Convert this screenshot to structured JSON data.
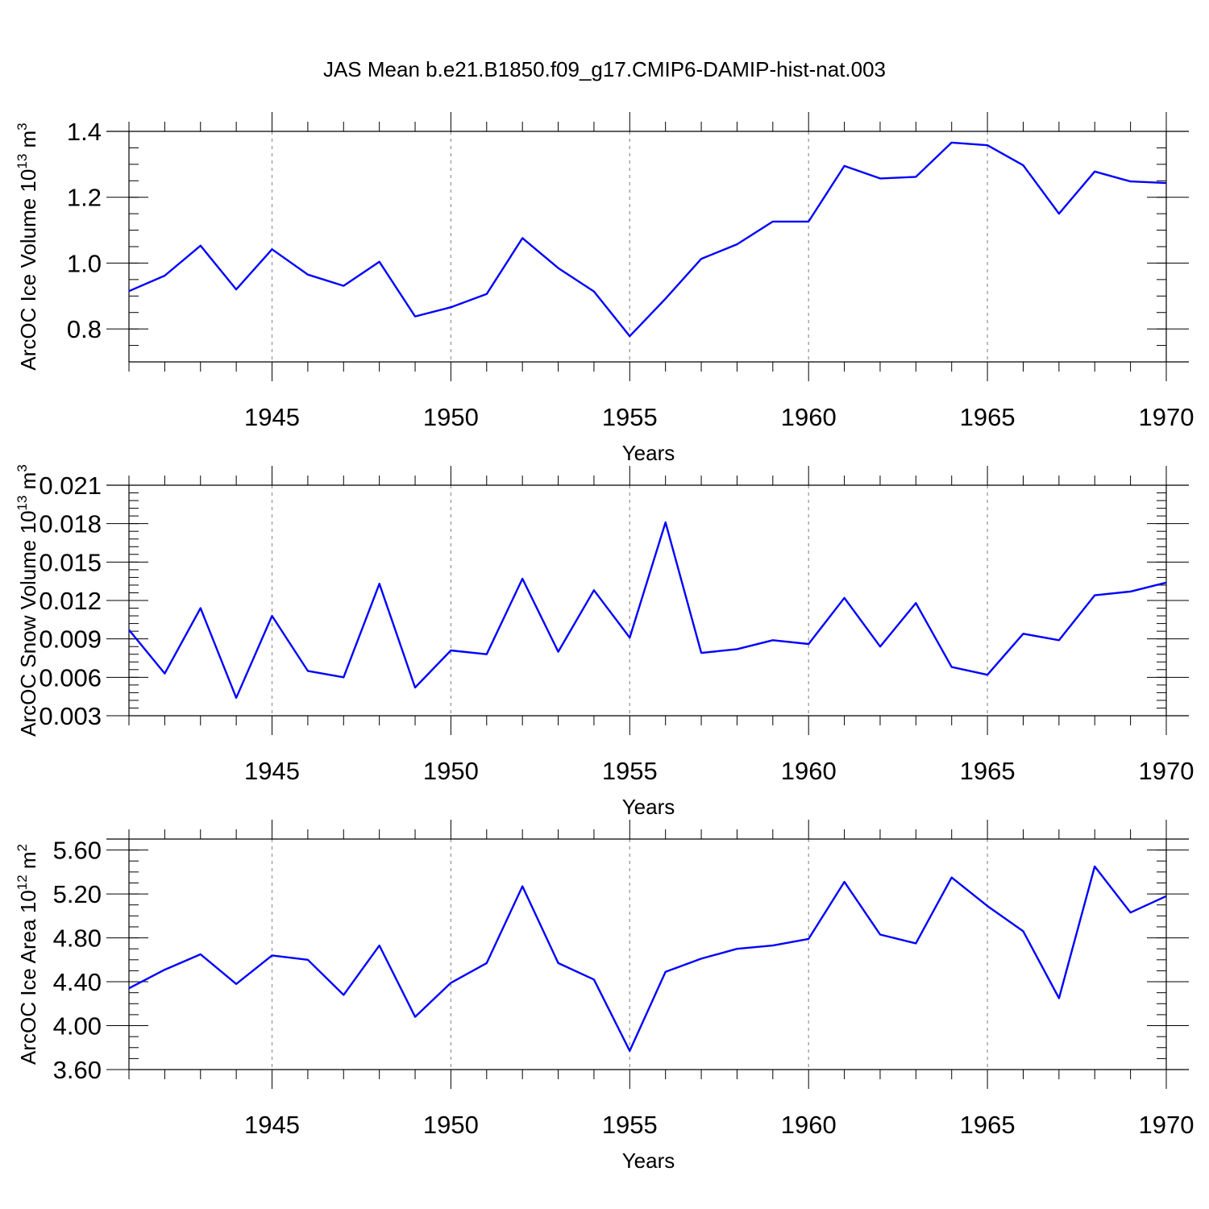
{
  "figure": {
    "title": "JAS Mean b.e21.B1850.f09_g17.CMIP6-DAMIP-hist-nat.003"
  },
  "colors": {
    "line": "#0000ff",
    "grid": "#999999",
    "axis": "#000000"
  },
  "chart_data": [
    {
      "type": "line",
      "ylabel_text": "ArcOC Ice Volume 10",
      "ylabel_exp": "13",
      "ylabel_unit": " m",
      "ylabel_unit_exp": "3",
      "xlabel": "Years",
      "xlim": [
        1941,
        1970
      ],
      "ylim": [
        0.7,
        1.4
      ],
      "yticks": [
        0.8,
        1.0,
        1.2,
        1.4
      ],
      "ytick_labels": [
        "0.8",
        "1.0",
        "1.2",
        "1.4"
      ],
      "yminor_step": 0.05,
      "xticks": [
        1945,
        1950,
        1955,
        1960,
        1965,
        1970
      ],
      "xtick_labels": [
        "1945",
        "1950",
        "1955",
        "1960",
        "1965",
        "1970"
      ],
      "x": [
        1941,
        1942,
        1943,
        1944,
        1945,
        1946,
        1947,
        1948,
        1949,
        1950,
        1951,
        1952,
        1953,
        1954,
        1955,
        1956,
        1957,
        1958,
        1959,
        1960,
        1961,
        1962,
        1963,
        1964,
        1965,
        1966,
        1967,
        1968,
        1969,
        1970
      ],
      "values": [
        0.915,
        0.962,
        1.053,
        0.92,
        1.042,
        0.965,
        0.931,
        1.004,
        0.838,
        0.866,
        0.906,
        1.076,
        0.985,
        0.914,
        0.778,
        0.892,
        1.013,
        1.057,
        1.126,
        1.126,
        1.295,
        1.257,
        1.262,
        1.366,
        1.358,
        1.297,
        1.15,
        1.278,
        1.248,
        1.243
      ]
    },
    {
      "type": "line",
      "ylabel_text": "ArcOC Snow Volume 10",
      "ylabel_exp": "13",
      "ylabel_unit": " m",
      "ylabel_unit_exp": "3",
      "xlabel": "Years",
      "xlim": [
        1941,
        1970
      ],
      "ylim": [
        0.003,
        0.021
      ],
      "yticks": [
        0.003,
        0.006,
        0.009,
        0.012,
        0.015,
        0.018,
        0.021
      ],
      "ytick_labels": [
        "0.003",
        "0.006",
        "0.009",
        "0.012",
        "0.015",
        "0.018",
        "0.021"
      ],
      "yminor_step": 0.0006,
      "xticks": [
        1945,
        1950,
        1955,
        1960,
        1965,
        1970
      ],
      "xtick_labels": [
        "1945",
        "1950",
        "1955",
        "1960",
        "1965",
        "1970"
      ],
      "x": [
        1941,
        1942,
        1943,
        1944,
        1945,
        1946,
        1947,
        1948,
        1949,
        1950,
        1951,
        1952,
        1953,
        1954,
        1955,
        1956,
        1957,
        1958,
        1959,
        1960,
        1961,
        1962,
        1963,
        1964,
        1965,
        1966,
        1967,
        1968,
        1969,
        1970
      ],
      "values": [
        0.0097,
        0.0063,
        0.0114,
        0.0044,
        0.0108,
        0.0065,
        0.006,
        0.0133,
        0.0052,
        0.0081,
        0.0078,
        0.0137,
        0.008,
        0.0128,
        0.0091,
        0.0181,
        0.0079,
        0.0082,
        0.0089,
        0.0086,
        0.0122,
        0.0084,
        0.0118,
        0.0068,
        0.0062,
        0.0094,
        0.0089,
        0.0124,
        0.0127,
        0.0134
      ]
    },
    {
      "type": "line",
      "ylabel_text": "ArcOC Ice Area 10",
      "ylabel_exp": "12",
      "ylabel_unit": " m",
      "ylabel_unit_exp": "2",
      "xlabel": "Years",
      "xlim": [
        1941,
        1970
      ],
      "ylim": [
        3.6,
        5.7
      ],
      "yticks": [
        3.6,
        4.0,
        4.4,
        4.8,
        5.2,
        5.6
      ],
      "ytick_labels": [
        "3.60",
        "4.00",
        "4.40",
        "4.80",
        "5.20",
        "5.60"
      ],
      "yminor_step": 0.1,
      "xticks": [
        1945,
        1950,
        1955,
        1960,
        1965,
        1970
      ],
      "xtick_labels": [
        "1945",
        "1950",
        "1955",
        "1960",
        "1965",
        "1970"
      ],
      "x": [
        1941,
        1942,
        1943,
        1944,
        1945,
        1946,
        1947,
        1948,
        1949,
        1950,
        1951,
        1952,
        1953,
        1954,
        1955,
        1956,
        1957,
        1958,
        1959,
        1960,
        1961,
        1962,
        1963,
        1964,
        1965,
        1966,
        1967,
        1968,
        1969,
        1970
      ],
      "values": [
        4.34,
        4.51,
        4.65,
        4.38,
        4.64,
        4.6,
        4.28,
        4.73,
        4.08,
        4.39,
        4.57,
        5.27,
        4.57,
        4.42,
        3.77,
        4.49,
        4.61,
        4.7,
        4.73,
        4.79,
        5.31,
        4.83,
        4.75,
        5.35,
        5.09,
        4.86,
        4.25,
        5.45,
        5.03,
        5.18
      ]
    }
  ]
}
